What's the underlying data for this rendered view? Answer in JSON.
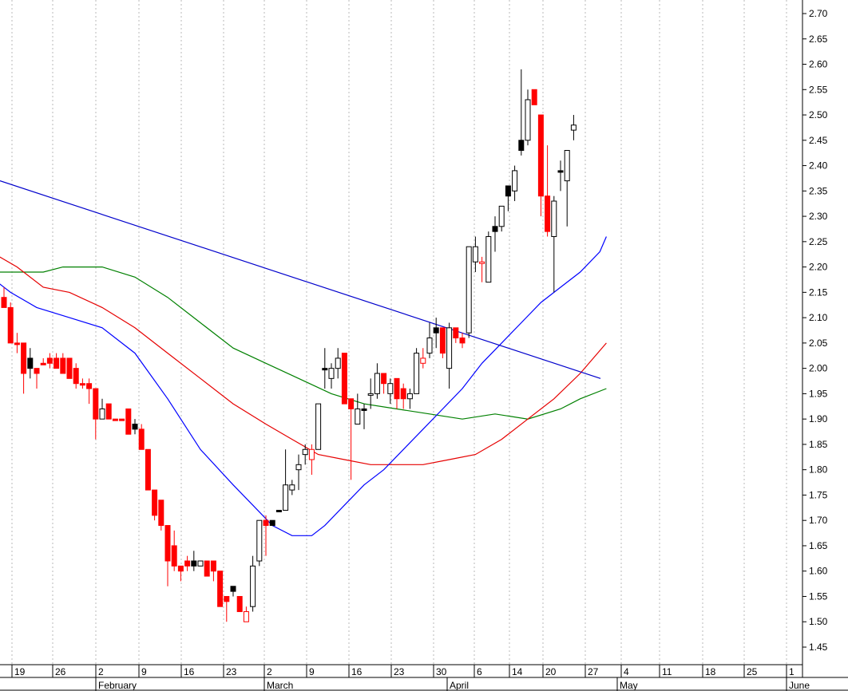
{
  "chart_data": {
    "type": "candlestick",
    "title": "",
    "xlabel": "",
    "ylabel": "",
    "ylim": [
      1.4,
      2.72
    ],
    "yticks": [
      "2.70",
      "2.65",
      "2.60",
      "2.55",
      "2.50",
      "2.45",
      "2.40",
      "2.35",
      "2.30",
      "2.25",
      "2.20",
      "2.15",
      "2.10",
      "2.05",
      "2.00",
      "1.95",
      "1.90",
      "1.85",
      "1.80",
      "1.75",
      "1.70",
      "1.65",
      "1.60",
      "1.55",
      "1.50",
      "1.45"
    ],
    "week_ticks": [
      "19",
      "26",
      "2",
      "9",
      "16",
      "23",
      "2",
      "9",
      "16",
      "23",
      "30",
      "6",
      "14",
      "20",
      "27",
      "4",
      "11",
      "18",
      "25",
      "1"
    ],
    "months": [
      "February",
      "March",
      "April",
      "May",
      "June"
    ],
    "grid": "vertical dotted at week ticks",
    "colors": {
      "up_candle": "#ffffff",
      "down_candle": "#ff0000",
      "black_candle": "#000000",
      "trendline": "#0000cc",
      "ma_blue": "#0000ff",
      "ma_red": "#e60000",
      "ma_green": "#008000"
    },
    "candles": [
      {
        "o": 2.14,
        "h": 2.16,
        "l": 2.12,
        "c": 2.12,
        "col": "red"
      },
      {
        "o": 2.12,
        "h": 2.13,
        "l": 2.05,
        "c": 2.05,
        "col": "red"
      },
      {
        "o": 2.05,
        "h": 2.07,
        "l": 2.03,
        "c": 2.05,
        "col": "red"
      },
      {
        "o": 2.05,
        "h": 2.05,
        "l": 1.95,
        "c": 1.99,
        "col": "red"
      },
      {
        "o": 2.0,
        "h": 2.04,
        "l": 1.98,
        "c": 2.02,
        "col": "black"
      },
      {
        "o": 2.0,
        "h": 2.0,
        "l": 1.96,
        "c": 1.99,
        "col": "red"
      },
      {
        "o": 2.01,
        "h": 2.02,
        "l": 2.01,
        "c": 2.01,
        "col": "red"
      },
      {
        "o": 2.02,
        "h": 2.03,
        "l": 2.0,
        "c": 2.01,
        "col": "red"
      },
      {
        "o": 2.02,
        "h": 2.03,
        "l": 2.0,
        "c": 2.0,
        "col": "red"
      },
      {
        "o": 2.02,
        "h": 2.03,
        "l": 1.99,
        "c": 1.99,
        "col": "red"
      },
      {
        "o": 2.02,
        "h": 2.02,
        "l": 1.98,
        "c": 1.98,
        "col": "red"
      },
      {
        "o": 2.0,
        "h": 2.01,
        "l": 1.96,
        "c": 1.97,
        "col": "red"
      },
      {
        "o": 1.97,
        "h": 1.98,
        "l": 1.96,
        "c": 1.97,
        "col": "red"
      },
      {
        "o": 1.97,
        "h": 1.98,
        "l": 1.93,
        "c": 1.96,
        "col": "red"
      },
      {
        "o": 1.96,
        "h": 1.96,
        "l": 1.86,
        "c": 1.9,
        "col": "red"
      },
      {
        "o": 1.9,
        "h": 1.94,
        "l": 1.9,
        "c": 1.92,
        "col": "white"
      },
      {
        "o": 1.93,
        "h": 1.93,
        "l": 1.9,
        "c": 1.9,
        "col": "red"
      },
      {
        "o": 1.9,
        "h": 1.9,
        "l": 1.9,
        "c": 1.9,
        "col": "red"
      },
      {
        "o": 1.9,
        "h": 1.9,
        "l": 1.9,
        "c": 1.9,
        "col": "red"
      },
      {
        "o": 1.92,
        "h": 1.92,
        "l": 1.87,
        "c": 1.87,
        "col": "red"
      },
      {
        "o": 1.89,
        "h": 1.9,
        "l": 1.87,
        "c": 1.88,
        "col": "black"
      },
      {
        "o": 1.88,
        "h": 1.89,
        "l": 1.84,
        "c": 1.84,
        "col": "red"
      },
      {
        "o": 1.84,
        "h": 1.84,
        "l": 1.76,
        "c": 1.76,
        "col": "red"
      },
      {
        "o": 1.76,
        "h": 1.76,
        "l": 1.7,
        "c": 1.71,
        "col": "red"
      },
      {
        "o": 1.74,
        "h": 1.74,
        "l": 1.68,
        "c": 1.69,
        "col": "red"
      },
      {
        "o": 1.69,
        "h": 1.69,
        "l": 1.57,
        "c": 1.62,
        "col": "red"
      },
      {
        "o": 1.65,
        "h": 1.68,
        "l": 1.6,
        "c": 1.61,
        "col": "red"
      },
      {
        "o": 1.61,
        "h": 1.61,
        "l": 1.58,
        "c": 1.6,
        "col": "red"
      },
      {
        "o": 1.62,
        "h": 1.63,
        "l": 1.6,
        "c": 1.61,
        "col": "red"
      },
      {
        "o": 1.61,
        "h": 1.64,
        "l": 1.6,
        "c": 1.62,
        "col": "black"
      },
      {
        "o": 1.61,
        "h": 1.62,
        "l": 1.61,
        "c": 1.62,
        "col": "white"
      },
      {
        "o": 1.62,
        "h": 1.62,
        "l": 1.59,
        "c": 1.59,
        "col": "red"
      },
      {
        "o": 1.6,
        "h": 1.62,
        "l": 1.58,
        "c": 1.62,
        "col": "red"
      },
      {
        "o": 1.6,
        "h": 1.6,
        "l": 1.53,
        "c": 1.53,
        "col": "red"
      },
      {
        "o": 1.55,
        "h": 1.55,
        "l": 1.5,
        "c": 1.54,
        "col": "red"
      },
      {
        "o": 1.56,
        "h": 1.57,
        "l": 1.55,
        "c": 1.57,
        "col": "black"
      },
      {
        "o": 1.55,
        "h": 1.55,
        "l": 1.52,
        "c": 1.52,
        "col": "red"
      },
      {
        "o": 1.52,
        "h": 1.53,
        "l": 1.5,
        "c": 1.5,
        "col": "hollowred"
      },
      {
        "o": 1.53,
        "h": 1.63,
        "l": 1.52,
        "c": 1.61,
        "col": "white"
      },
      {
        "o": 1.62,
        "h": 1.7,
        "l": 1.61,
        "c": 1.7,
        "col": "white"
      },
      {
        "o": 1.7,
        "h": 1.71,
        "l": 1.63,
        "c": 1.69,
        "col": "red"
      },
      {
        "o": 1.69,
        "h": 1.7,
        "l": 1.69,
        "c": 1.7,
        "col": "black"
      },
      {
        "o": 1.72,
        "h": 1.72,
        "l": 1.72,
        "c": 1.72,
        "col": "black"
      },
      {
        "o": 1.72,
        "h": 1.84,
        "l": 1.72,
        "c": 1.77,
        "col": "white"
      },
      {
        "o": 1.77,
        "h": 1.78,
        "l": 1.75,
        "c": 1.76,
        "col": "white"
      },
      {
        "o": 1.8,
        "h": 1.83,
        "l": 1.76,
        "c": 1.81,
        "col": "white"
      },
      {
        "o": 1.83,
        "h": 1.85,
        "l": 1.81,
        "c": 1.84,
        "col": "white"
      },
      {
        "o": 1.84,
        "h": 1.85,
        "l": 1.79,
        "c": 1.82,
        "col": "hollowred"
      },
      {
        "o": 1.84,
        "h": 1.93,
        "l": 1.84,
        "c": 1.93,
        "col": "white"
      },
      {
        "o": 2.0,
        "h": 2.04,
        "l": 1.96,
        "c": 2.0,
        "col": "black"
      },
      {
        "o": 1.98,
        "h": 2.01,
        "l": 1.96,
        "c": 2.0,
        "col": "white"
      },
      {
        "o": 2.0,
        "h": 2.04,
        "l": 1.98,
        "c": 2.02,
        "col": "white"
      },
      {
        "o": 2.03,
        "h": 2.03,
        "l": 1.93,
        "c": 1.93,
        "col": "red"
      },
      {
        "o": 1.94,
        "h": 1.94,
        "l": 1.78,
        "c": 1.92,
        "col": "red"
      },
      {
        "o": 1.89,
        "h": 1.95,
        "l": 1.89,
        "c": 1.92,
        "col": "white"
      },
      {
        "o": 1.92,
        "h": 1.93,
        "l": 1.88,
        "c": 1.92,
        "col": "black"
      },
      {
        "o": 1.95,
        "h": 1.98,
        "l": 1.92,
        "c": 1.95,
        "col": "white"
      },
      {
        "o": 1.95,
        "h": 2.01,
        "l": 1.94,
        "c": 1.99,
        "col": "white"
      },
      {
        "o": 1.99,
        "h": 1.99,
        "l": 1.95,
        "c": 1.97,
        "col": "red"
      },
      {
        "o": 1.95,
        "h": 1.98,
        "l": 1.93,
        "c": 1.97,
        "col": "white"
      },
      {
        "o": 1.98,
        "h": 1.98,
        "l": 1.92,
        "c": 1.94,
        "col": "red"
      },
      {
        "o": 1.96,
        "h": 1.97,
        "l": 1.92,
        "c": 1.94,
        "col": "red"
      },
      {
        "o": 1.94,
        "h": 1.96,
        "l": 1.92,
        "c": 1.95,
        "col": "white"
      },
      {
        "o": 1.95,
        "h": 2.04,
        "l": 1.95,
        "c": 2.03,
        "col": "white"
      },
      {
        "o": 2.02,
        "h": 2.04,
        "l": 2.0,
        "c": 2.01,
        "col": "hollowred"
      },
      {
        "o": 2.03,
        "h": 2.09,
        "l": 2.02,
        "c": 2.06,
        "col": "white"
      },
      {
        "o": 2.07,
        "h": 2.1,
        "l": 2.04,
        "c": 2.08,
        "col": "black"
      },
      {
        "o": 2.08,
        "h": 2.08,
        "l": 2.02,
        "c": 2.03,
        "col": "red"
      },
      {
        "o": 2.0,
        "h": 2.09,
        "l": 1.96,
        "c": 2.08,
        "col": "white"
      },
      {
        "o": 2.08,
        "h": 2.08,
        "l": 2.05,
        "c": 2.06,
        "col": "red"
      },
      {
        "o": 2.06,
        "h": 2.07,
        "l": 2.04,
        "c": 2.05,
        "col": "red"
      },
      {
        "o": 2.07,
        "h": 2.24,
        "l": 2.06,
        "c": 2.24,
        "col": "white"
      },
      {
        "o": 2.21,
        "h": 2.26,
        "l": 2.19,
        "c": 2.24,
        "col": "white"
      },
      {
        "o": 2.21,
        "h": 2.22,
        "l": 2.17,
        "c": 2.21,
        "col": "hollowred"
      },
      {
        "o": 2.17,
        "h": 2.27,
        "l": 2.17,
        "c": 2.26,
        "col": "white"
      },
      {
        "o": 2.27,
        "h": 2.3,
        "l": 2.23,
        "c": 2.28,
        "col": "black"
      },
      {
        "o": 2.28,
        "h": 2.32,
        "l": 2.27,
        "c": 2.32,
        "col": "white"
      },
      {
        "o": 2.34,
        "h": 2.36,
        "l": 2.31,
        "c": 2.36,
        "col": "black"
      },
      {
        "o": 2.35,
        "h": 2.4,
        "l": 2.33,
        "c": 2.39,
        "col": "white"
      },
      {
        "o": 2.43,
        "h": 2.59,
        "l": 2.42,
        "c": 2.45,
        "col": "black"
      },
      {
        "o": 2.45,
        "h": 2.55,
        "l": 2.44,
        "c": 2.53,
        "col": "white"
      },
      {
        "o": 2.55,
        "h": 2.55,
        "l": 2.52,
        "c": 2.52,
        "col": "red"
      },
      {
        "o": 2.5,
        "h": 2.5,
        "l": 2.3,
        "c": 2.34,
        "col": "red"
      },
      {
        "o": 2.34,
        "h": 2.44,
        "l": 2.26,
        "c": 2.27,
        "col": "red"
      },
      {
        "o": 2.26,
        "h": 2.34,
        "l": 2.15,
        "c": 2.33,
        "col": "white"
      },
      {
        "o": 2.39,
        "h": 2.41,
        "l": 2.35,
        "c": 2.39,
        "col": "black"
      },
      {
        "o": 2.37,
        "h": 2.43,
        "l": 2.28,
        "c": 2.43,
        "col": "white"
      },
      {
        "o": 2.47,
        "h": 2.5,
        "l": 2.45,
        "c": 2.48,
        "col": "white"
      }
    ],
    "trendline": {
      "x": [
        0,
        88.8
      ],
      "y": [
        2.37,
        1.98
      ],
      "note": "x given as candle index from chart left"
    },
    "ma_blue": {
      "name": "",
      "x": [
        -2,
        1,
        5,
        10,
        15,
        20,
        25,
        30,
        35,
        38,
        41,
        44,
        47,
        49,
        52,
        55,
        58,
        61,
        64,
        67,
        70,
        73,
        76,
        79,
        82,
        85,
        88,
        91,
        92
      ],
      "y": [
        2.18,
        2.15,
        2.12,
        2.1,
        2.08,
        2.03,
        1.94,
        1.84,
        1.77,
        1.73,
        1.69,
        1.67,
        1.67,
        1.69,
        1.73,
        1.77,
        1.8,
        1.84,
        1.88,
        1.92,
        1.96,
        2.01,
        2.05,
        2.09,
        2.13,
        2.16,
        2.19,
        2.23,
        2.26
      ]
    },
    "ma_red": {
      "name": "",
      "x": [
        -2,
        2,
        6,
        10,
        15,
        20,
        25,
        30,
        35,
        40,
        44,
        48,
        52,
        56,
        60,
        64,
        68,
        72,
        76,
        80,
        84,
        88,
        92
      ],
      "y": [
        2.23,
        2.2,
        2.16,
        2.15,
        2.12,
        2.08,
        2.03,
        1.98,
        1.93,
        1.89,
        1.86,
        1.83,
        1.82,
        1.81,
        1.81,
        1.81,
        1.82,
        1.83,
        1.86,
        1.9,
        1.94,
        1.99,
        2.05
      ]
    },
    "ma_green": {
      "name": "",
      "x": [
        -2,
        2,
        6,
        9,
        12,
        15,
        20,
        25,
        30,
        35,
        40,
        45,
        50,
        55,
        60,
        65,
        70,
        75,
        80,
        85,
        88,
        92
      ],
      "y": [
        2.19,
        2.19,
        2.19,
        2.2,
        2.2,
        2.2,
        2.18,
        2.14,
        2.09,
        2.04,
        2.01,
        1.98,
        1.95,
        1.93,
        1.92,
        1.91,
        1.9,
        1.91,
        1.9,
        1.92,
        1.94,
        1.96
      ]
    }
  }
}
